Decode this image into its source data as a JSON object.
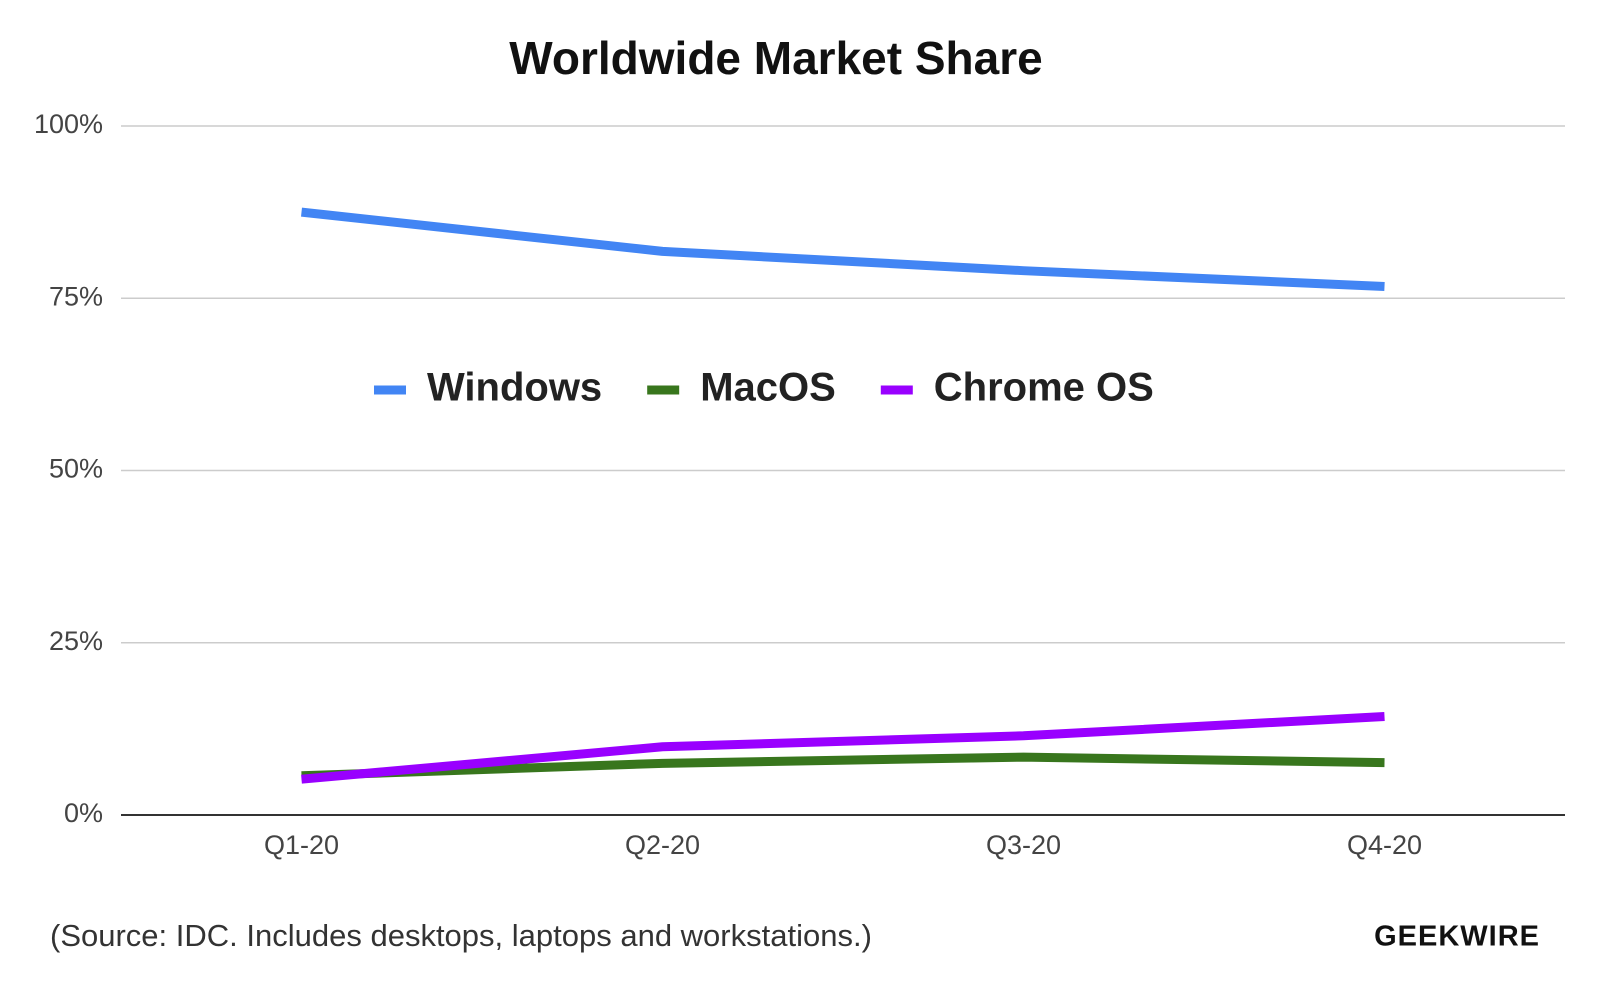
{
  "chart_data": {
    "type": "line",
    "title": "Worldwide Market Share",
    "categories": [
      "Q1-20",
      "Q2-20",
      "Q3-20",
      "Q4-20"
    ],
    "series": [
      {
        "name": "Windows",
        "color": "#4285f4",
        "values": [
          87.5,
          81.8,
          79.0,
          76.7
        ]
      },
      {
        "name": "MacOS",
        "color": "#38761d",
        "values": [
          5.7,
          7.5,
          8.4,
          7.6
        ]
      },
      {
        "name": "Chrome OS",
        "color": "#9900ff",
        "values": [
          5.2,
          9.9,
          11.5,
          14.3
        ]
      }
    ],
    "ylim": [
      0,
      100
    ],
    "yticks": [
      {
        "value": 0,
        "label": "0%"
      },
      {
        "value": 25,
        "label": "25%"
      },
      {
        "value": 50,
        "label": "50%"
      },
      {
        "value": 75,
        "label": "75%"
      },
      {
        "value": 100,
        "label": "100%"
      }
    ],
    "grid": true,
    "note": "(Source: IDC. Includes desktops, laptops and workstations.)",
    "credit": "GEEKWIRE"
  }
}
